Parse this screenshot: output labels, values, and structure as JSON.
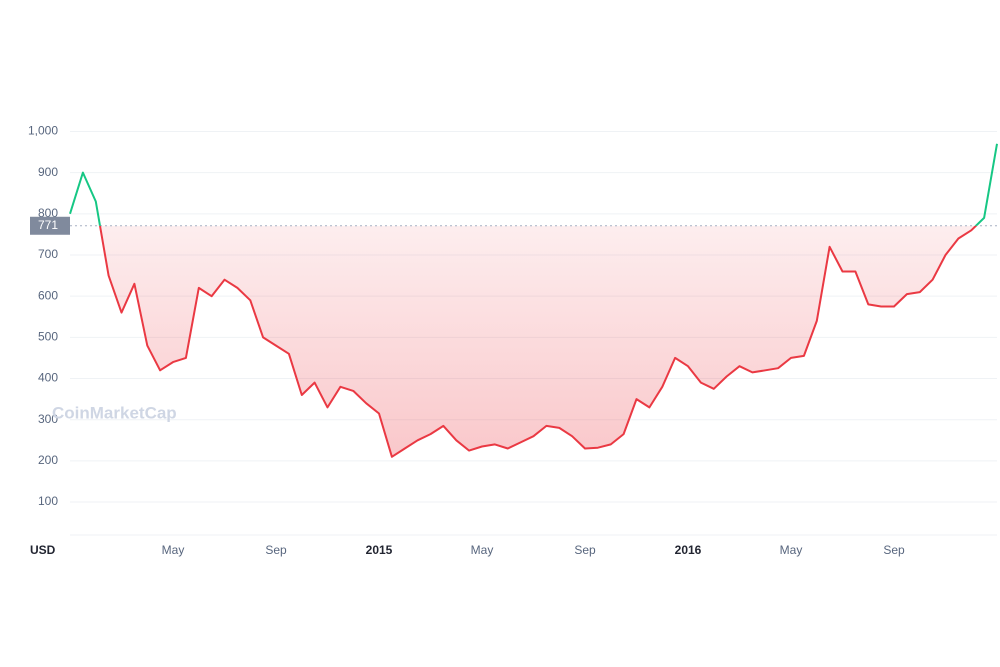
{
  "chart_data": {
    "type": "line",
    "axis_unit": "USD",
    "watermark": "CoinMarketCap",
    "categories": [
      null,
      null,
      null,
      null,
      null,
      null,
      null,
      null,
      "May",
      null,
      null,
      null,
      null,
      null,
      null,
      null,
      "Sep",
      null,
      null,
      null,
      null,
      null,
      null,
      null,
      "2015",
      null,
      null,
      null,
      null,
      null,
      null,
      null,
      "May",
      null,
      null,
      null,
      null,
      null,
      null,
      null,
      "Sep",
      null,
      null,
      null,
      null,
      null,
      null,
      null,
      "2016",
      null,
      null,
      null,
      null,
      null,
      null,
      null,
      "May",
      null,
      null,
      null,
      null,
      null,
      null,
      null,
      "Sep",
      null,
      null,
      null,
      null,
      null,
      null,
      null,
      null
    ],
    "values": [
      800,
      900,
      830,
      650,
      560,
      630,
      480,
      420,
      440,
      450,
      620,
      600,
      640,
      620,
      590,
      500,
      480,
      460,
      360,
      390,
      330,
      380,
      370,
      340,
      315,
      210,
      230,
      250,
      265,
      285,
      250,
      225,
      235,
      240,
      230,
      245,
      260,
      285,
      280,
      260,
      230,
      232,
      240,
      265,
      350,
      330,
      380,
      450,
      430,
      390,
      375,
      405,
      430,
      415,
      420,
      425,
      450,
      455,
      540,
      720,
      660,
      660,
      580,
      575,
      575,
      605,
      610,
      640,
      700,
      740,
      760,
      790,
      970
    ],
    "color": "#ea3943",
    "above_color": "#16c784",
    "reference_value": 771,
    "ylim": [
      20,
      1040
    ],
    "yticks": [
      100,
      200,
      300,
      400,
      500,
      600,
      700,
      800,
      900,
      {
        "value": 1000,
        "label": "1,000"
      }
    ],
    "grid": true
  }
}
